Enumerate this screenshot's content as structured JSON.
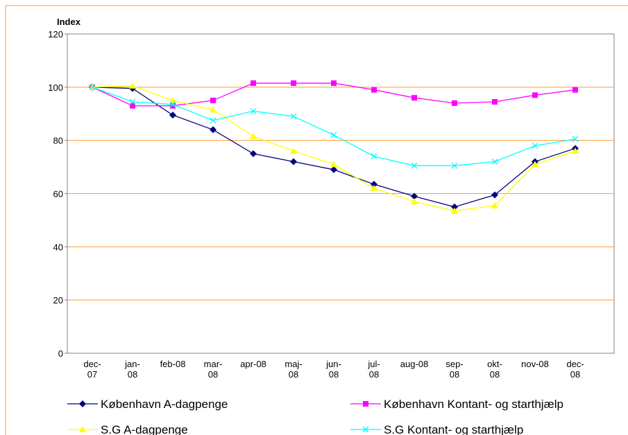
{
  "chart_data": {
    "type": "line",
    "y_label": "Index",
    "categories": [
      "dec-07",
      "jan-08",
      "feb-08",
      "mar-08",
      "apr-08",
      "maj-08",
      "jun-08",
      "jul-08",
      "aug-08",
      "sep-08",
      "okt-08",
      "nov-08",
      "dec-08"
    ],
    "series": [
      {
        "name": "København A-dagpenge",
        "color": "#000080",
        "marker": "diamond",
        "values": [
          100,
          99.5,
          89.5,
          84,
          75,
          72,
          69,
          63.5,
          59,
          55,
          59.5,
          72,
          77
        ]
      },
      {
        "name": "København Kontant- og starthjælp",
        "color": "#ff00ff",
        "marker": "square",
        "values": [
          100,
          93,
          93,
          95,
          101.5,
          101.5,
          101.5,
          99,
          96,
          94,
          94.5,
          97,
          99
        ]
      },
      {
        "name": "S.G  A-dagpenge",
        "color": "#ffff00",
        "marker": "triangle",
        "values": [
          100,
          100.5,
          95,
          91.5,
          81.5,
          76,
          71,
          62,
          57,
          53.5,
          55.5,
          71,
          76
        ]
      },
      {
        "name": "S.G Kontant- og starthjælp",
        "color": "#00ffff",
        "marker": "cross",
        "values": [
          100,
          94.5,
          93.5,
          87.5,
          91,
          89,
          82,
          74,
          70.5,
          70.5,
          72,
          78,
          80.5
        ]
      }
    ],
    "ylim": [
      0,
      120
    ],
    "yticks": [
      0,
      20,
      40,
      60,
      80,
      100,
      120
    ],
    "grid": true,
    "grid_color": "#ff9933"
  }
}
